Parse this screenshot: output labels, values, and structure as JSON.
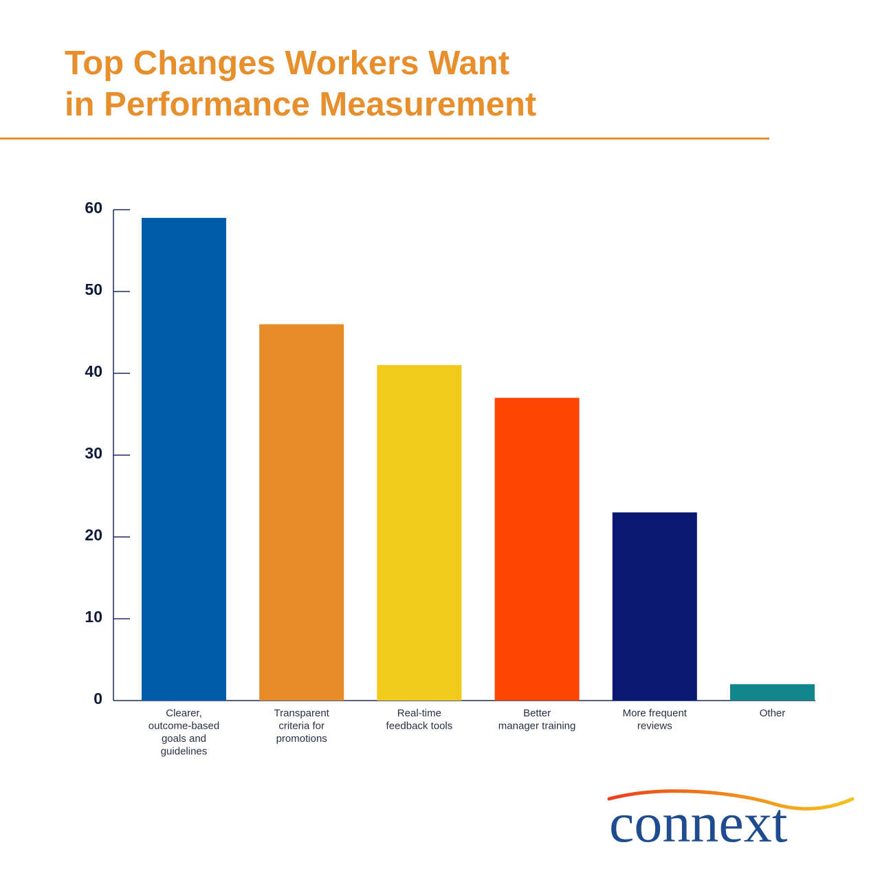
{
  "title_lines": [
    "Top Changes Workers Want",
    "in Performance Measurement"
  ],
  "logo": {
    "text": "connext"
  },
  "chart_data": {
    "type": "bar",
    "title": "Top Changes Workers Want in Performance Measurement",
    "xlabel": "",
    "ylabel": "",
    "ylim": [
      0,
      60
    ],
    "yticks": [
      0,
      10,
      20,
      30,
      40,
      50,
      60
    ],
    "grid": false,
    "legend": "none",
    "categories": [
      "Clearer, outcome-based goals and guidelines",
      "Transparent criteria for promotions",
      "Real-time feedback tools",
      "Better manager training",
      "More frequent reviews",
      "Other"
    ],
    "category_lines": [
      [
        "Clearer,",
        "outcome-based",
        "goals and",
        "guidelines"
      ],
      [
        "Transparent",
        "criteria for",
        "promotions"
      ],
      [
        "Real-time",
        "feedback tools"
      ],
      [
        "Better",
        "manager training"
      ],
      [
        "More frequent",
        "reviews"
      ],
      [
        "Other"
      ]
    ],
    "values": [
      59,
      46,
      41,
      37,
      23,
      2
    ],
    "colors": [
      "#005bab",
      "#e68b27",
      "#f2ca1b",
      "#fd4400",
      "#0a1873",
      "#11868c"
    ]
  }
}
